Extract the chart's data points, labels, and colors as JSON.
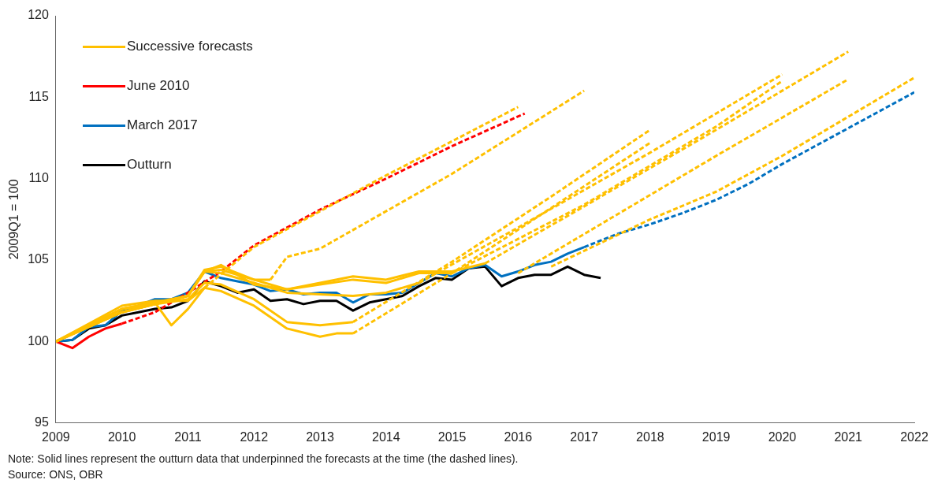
{
  "chart_data": {
    "type": "line",
    "ylabel": "2009Q1 = 100",
    "xlim": [
      2009,
      2022
    ],
    "xticks": [
      2009,
      2010,
      2011,
      2012,
      2013,
      2014,
      2015,
      2016,
      2017,
      2018,
      2019,
      2020,
      2021,
      2022
    ],
    "ylim": [
      95,
      120
    ],
    "yticks": [
      95,
      100,
      105,
      110,
      115,
      120
    ],
    "grid": false,
    "legend": "top left",
    "marker": "none",
    "annotations": [
      "Note: Solid lines represent the outturn data that underpinned the forecasts at the time (the dashed lines).",
      "Source: ONS, OBR"
    ],
    "series": [
      {
        "name": "Successive forecasts",
        "color": "#ffc000",
        "line_style": "solid",
        "x": [
          2009,
          2009.5,
          2010,
          2010.5,
          2011,
          2011.25,
          2011.5,
          2012,
          2012.5,
          2013,
          2013.25,
          2013.5
        ],
        "values": [
          100,
          101.1,
          102.2,
          102.5,
          102.5,
          103.3,
          103.1,
          102.2,
          100.8,
          100.3,
          100.5,
          100.5
        ]
      },
      {
        "color": "#ffc000",
        "line_style": "dashed",
        "x": [
          2013.5,
          2015,
          2016.5,
          2018
        ],
        "values": [
          100.5,
          104.2,
          108.2,
          112.2
        ]
      },
      {
        "color": "#ffc000",
        "line_style": "solid",
        "x": [
          2009,
          2009.5,
          2010,
          2010.5,
          2011,
          2011.25,
          2011.5,
          2012,
          2012.5,
          2013,
          2013.5
        ],
        "values": [
          100,
          101,
          102,
          102.3,
          102.6,
          103.6,
          103.5,
          102.6,
          101.2,
          101,
          101.2
        ]
      },
      {
        "color": "#ffc000",
        "line_style": "dashed",
        "x": [
          2013.5,
          2015,
          2016.5,
          2018
        ],
        "values": [
          101.2,
          104.9,
          108.9,
          113
        ]
      },
      {
        "color": "#ffc000",
        "line_style": "solid",
        "x": [
          2009,
          2009.5,
          2010,
          2010.5,
          2010.75,
          2011,
          2011.25
        ],
        "values": [
          100,
          101,
          102,
          102.4,
          101,
          102,
          103.3
        ]
      },
      {
        "color": "#ffc000",
        "line_style": "dashed",
        "x": [
          2011.25,
          2012,
          2014,
          2016
        ],
        "values": [
          103.3,
          105.8,
          110.2,
          114.4
        ]
      },
      {
        "color": "#ffc000",
        "line_style": "solid",
        "x": [
          2009,
          2009.5,
          2010,
          2010.5,
          2011,
          2011.25,
          2011.5,
          2012,
          2012.25
        ],
        "values": [
          100,
          101,
          102,
          102.4,
          102.8,
          104.4,
          104.6,
          103.8,
          103.8
        ]
      },
      {
        "color": "#ffc000",
        "line_style": "dashed",
        "x": [
          2012.25,
          2012.5,
          2013,
          2015,
          2017
        ],
        "values": [
          103.8,
          105.2,
          105.7,
          110.3,
          115.4
        ]
      },
      {
        "color": "#ffc000",
        "line_style": "solid",
        "x": [
          2009,
          2010,
          2011,
          2011.25,
          2011.5,
          2012,
          2012.5,
          2013,
          2013.5,
          2014,
          2014.5
        ],
        "values": [
          100,
          101.8,
          102.8,
          104.3,
          104.2,
          103.6,
          103,
          102.9,
          102.8,
          103,
          103.6
        ]
      },
      {
        "color": "#ffc000",
        "line_style": "dashed",
        "x": [
          2014.5,
          2016,
          2018,
          2020
        ],
        "values": [
          103.6,
          107,
          111.6,
          116.4
        ]
      },
      {
        "color": "#ffc000",
        "line_style": "solid",
        "x": [
          2009,
          2010,
          2011,
          2011.25,
          2011.5,
          2012,
          2012.5,
          2013,
          2013.5,
          2014,
          2014.5,
          2015
        ],
        "values": [
          100,
          101.8,
          102.8,
          104.3,
          104.4,
          103.8,
          103.2,
          103.5,
          103.8,
          103.6,
          104.2,
          104.2
        ]
      },
      {
        "color": "#ffc000",
        "line_style": "dashed",
        "x": [
          2015,
          2017,
          2019,
          2020
        ],
        "values": [
          104.2,
          108.4,
          113.2,
          116
        ]
      },
      {
        "color": "#ffc000",
        "line_style": "solid",
        "x": [
          2009,
          2010,
          2011,
          2011.25,
          2011.5,
          2012,
          2012.5,
          2013,
          2013.5,
          2014,
          2014.5,
          2015,
          2015.5
        ],
        "values": [
          100,
          101.8,
          102.8,
          104.3,
          104.7,
          103.5,
          103.2,
          103.6,
          104,
          103.8,
          104.3,
          104.3,
          104.8
        ]
      },
      {
        "color": "#ffc000",
        "line_style": "dashed",
        "x": [
          2015.5,
          2017,
          2019,
          2021
        ],
        "values": [
          104.8,
          108.3,
          113,
          117.8
        ]
      },
      {
        "color": "#ffc000",
        "line_style": "dashed",
        "x": [
          2016,
          2017,
          2019,
          2021
        ],
        "values": [
          104.2,
          106.6,
          111.4,
          116.1
        ]
      },
      {
        "color": "#ffc000",
        "line_style": "dashed",
        "x": [
          2016.5,
          2018,
          2019,
          2020,
          2021,
          2022
        ],
        "values": [
          104.6,
          107.5,
          109.2,
          111.4,
          113.8,
          116.2
        ]
      },
      {
        "name": "June 2010",
        "color": "#ff0000",
        "line_style": "solid",
        "x": [
          2009,
          2009.25,
          2009.5,
          2009.75,
          2010
        ],
        "values": [
          100,
          99.6,
          100.3,
          100.8,
          101.1
        ]
      },
      {
        "color": "#ff0000",
        "line_style": "dashed",
        "x": [
          2010,
          2010.5,
          2011,
          2011.5,
          2012,
          2013,
          2014,
          2015,
          2016.1
        ],
        "values": [
          101.1,
          101.8,
          103,
          104.3,
          105.9,
          108.1,
          110,
          112,
          114
        ]
      },
      {
        "name": "March 2017",
        "color": "#0070c0",
        "line_style": "solid",
        "x": [
          2009,
          2009.25,
          2009.5,
          2009.75,
          2010,
          2010.25,
          2010.5,
          2010.75,
          2011,
          2011.25,
          2011.5,
          2011.75,
          2012,
          2012.25,
          2012.5,
          2012.75,
          2013,
          2013.25,
          2013.5,
          2013.75,
          2014,
          2014.25,
          2014.5,
          2014.75,
          2015,
          2015.25,
          2015.5,
          2015.75,
          2016,
          2016.25,
          2016.5,
          2016.75,
          2017
        ],
        "values": [
          100,
          100.1,
          100.9,
          101,
          101.9,
          102.2,
          102.6,
          102.6,
          103,
          104.3,
          103.9,
          103.7,
          103.5,
          103.1,
          103.2,
          102.9,
          103,
          103,
          102.4,
          102.9,
          102.9,
          103,
          103.6,
          104.2,
          104,
          104.5,
          104.7,
          104,
          104.3,
          104.7,
          104.9,
          105.4,
          105.8
        ]
      },
      {
        "color": "#0070c0",
        "line_style": "dashed",
        "x": [
          2017,
          2017.5,
          2018,
          2018.5,
          2019,
          2019.5,
          2020,
          2020.5,
          2021,
          2021.5,
          2022
        ],
        "values": [
          105.8,
          106.6,
          107.2,
          107.9,
          108.7,
          109.7,
          110.9,
          112,
          113.1,
          114.2,
          115.3
        ]
      },
      {
        "name": "Outturn",
        "color": "#000000",
        "line_style": "solid",
        "x": [
          2009,
          2009.25,
          2009.5,
          2009.75,
          2010,
          2010.25,
          2010.5,
          2010.75,
          2011,
          2011.25,
          2011.5,
          2011.75,
          2012,
          2012.25,
          2012.5,
          2012.75,
          2013,
          2013.25,
          2013.5,
          2013.75,
          2014,
          2014.25,
          2014.5,
          2014.75,
          2015,
          2015.25,
          2015.5,
          2015.75,
          2016,
          2016.25,
          2016.5,
          2016.75,
          2017,
          2017.25
        ],
        "values": [
          100,
          100.1,
          100.8,
          101,
          101.6,
          101.8,
          102,
          102.1,
          102.5,
          103.7,
          103.4,
          103,
          103.2,
          102.5,
          102.6,
          102.3,
          102.5,
          102.5,
          101.9,
          102.4,
          102.6,
          102.8,
          103.4,
          103.9,
          103.8,
          104.5,
          104.6,
          103.4,
          103.9,
          104.1,
          104.1,
          104.6,
          104.1,
          103.9
        ]
      }
    ]
  }
}
